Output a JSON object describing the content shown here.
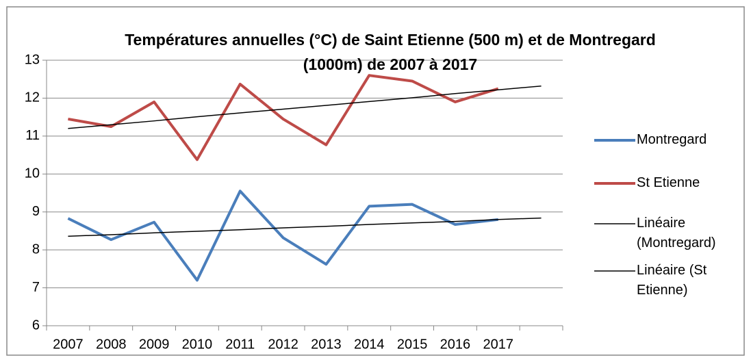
{
  "chart_data": {
    "type": "line",
    "title": "Températures annuelles (°C) de Saint Etienne (500 m) et de Montregard  (1000m) de 2007 à 2017",
    "categories": [
      "2007",
      "2008",
      "2009",
      "2010",
      "2011",
      "2012",
      "2013",
      "2014",
      "2015",
      "2016",
      "2017",
      null
    ],
    "series": [
      {
        "name": "Montregard",
        "color": "#4a7ebb",
        "width": 4,
        "values": [
          8.83,
          8.27,
          8.73,
          7.2,
          9.55,
          8.32,
          7.62,
          9.15,
          9.2,
          8.67,
          8.8,
          null
        ]
      },
      {
        "name": "St Etienne",
        "color": "#be4b48",
        "width": 4,
        "values": [
          11.45,
          11.25,
          11.9,
          10.38,
          12.37,
          11.45,
          10.77,
          12.6,
          12.45,
          11.9,
          12.25,
          null
        ]
      },
      {
        "name": "Linéaire (Montregard)",
        "color": "#000000",
        "width": 1.5,
        "values": [
          8.36,
          8.4,
          8.45,
          8.49,
          8.53,
          8.58,
          8.62,
          8.67,
          8.71,
          8.75,
          8.8,
          8.84
        ]
      },
      {
        "name": "Linéaire (St Etienne)",
        "color": "#000000",
        "width": 1.5,
        "values": [
          11.2,
          11.3,
          11.4,
          11.51,
          11.61,
          11.71,
          11.81,
          11.91,
          12.01,
          12.12,
          12.22,
          12.32
        ]
      }
    ],
    "ylim": [
      6,
      13
    ],
    "yticks": [
      6,
      7,
      8,
      9,
      10,
      11,
      12,
      13
    ],
    "grid": true,
    "legend": "right"
  }
}
